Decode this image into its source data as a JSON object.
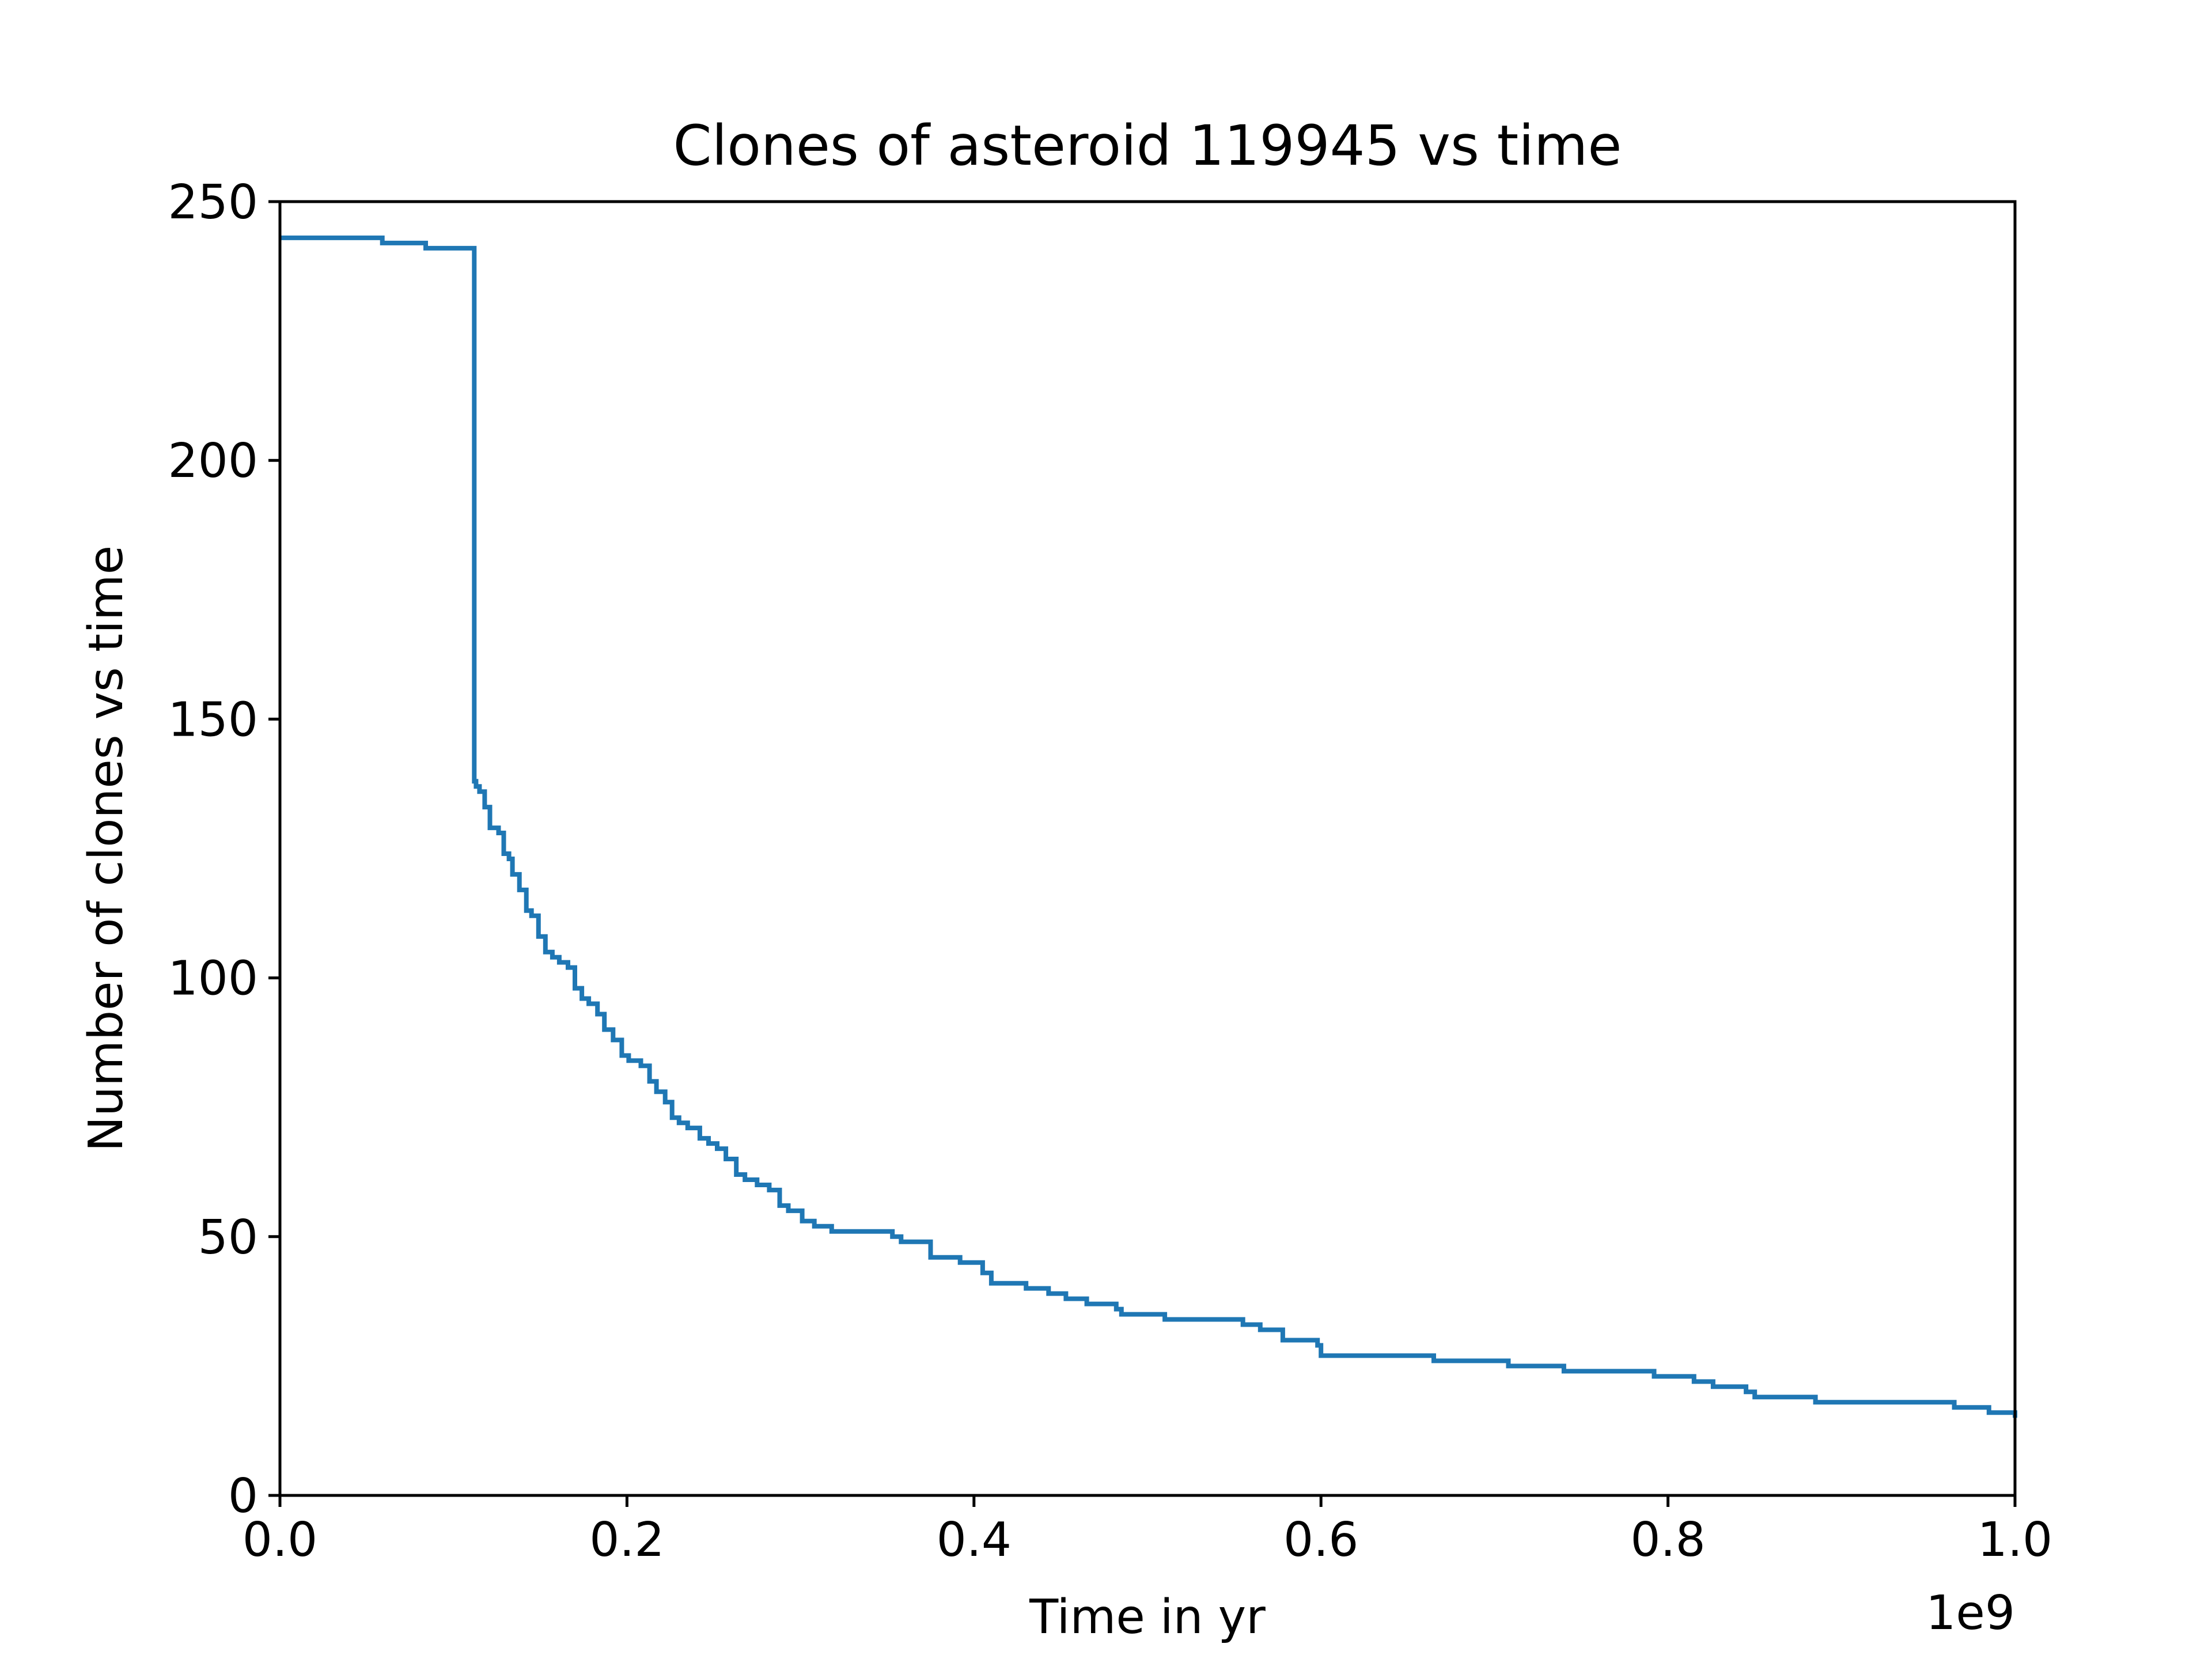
{
  "chart_data": {
    "type": "line",
    "title": "Clones of asteroid 119945 vs time",
    "xlabel": "Time in yr",
    "ylabel": "Number of clones vs time",
    "x_offset_label": "1e9",
    "xlim": [
      0.0,
      1.0
    ],
    "ylim": [
      0,
      250
    ],
    "x_ticks": [
      0.0,
      0.2,
      0.4,
      0.6,
      0.8,
      1.0
    ],
    "x_tick_labels": [
      "0.0",
      "0.2",
      "0.4",
      "0.6",
      "0.8",
      "1.0"
    ],
    "y_ticks": [
      0,
      50,
      100,
      150,
      200,
      250
    ],
    "y_tick_labels": [
      "0",
      "50",
      "100",
      "150",
      "200",
      "250"
    ],
    "grid": false,
    "legend": "none",
    "line_color": "#1f77b4",
    "step": "post",
    "series": [
      {
        "x": [
          0.0,
          0.059,
          0.084,
          0.112,
          0.113,
          0.115,
          0.118,
          0.121,
          0.126,
          0.129,
          0.132,
          0.134,
          0.138,
          0.142,
          0.145,
          0.149,
          0.153,
          0.157,
          0.161,
          0.166,
          0.17,
          0.174,
          0.178,
          0.183,
          0.187,
          0.192,
          0.197,
          0.201,
          0.208,
          0.213,
          0.217,
          0.222,
          0.226,
          0.23,
          0.235,
          0.242,
          0.247,
          0.252,
          0.257,
          0.263,
          0.268,
          0.275,
          0.282,
          0.288,
          0.293,
          0.301,
          0.308,
          0.318,
          0.328,
          0.353,
          0.358,
          0.375,
          0.378,
          0.392,
          0.405,
          0.41,
          0.43,
          0.443,
          0.453,
          0.465,
          0.475,
          0.482,
          0.485,
          0.51,
          0.555,
          0.565,
          0.578,
          0.598,
          0.6,
          0.665,
          0.705,
          0.708,
          0.74,
          0.792,
          0.815,
          0.826,
          0.845,
          0.85,
          0.885,
          0.965,
          0.985,
          1.0
        ],
        "values": [
          243,
          242,
          241,
          138,
          137,
          136,
          133,
          129,
          128,
          124,
          123,
          120,
          117,
          113,
          112,
          108,
          105,
          104,
          103,
          102,
          98,
          96,
          95,
          93,
          90,
          88,
          85,
          84,
          83,
          80,
          78,
          76,
          73,
          72,
          71,
          69,
          68,
          67,
          65,
          62,
          61,
          60,
          59,
          56,
          55,
          53,
          52,
          51,
          51,
          50,
          49,
          46,
          46,
          45,
          43,
          41,
          40,
          39,
          38,
          37,
          37,
          36,
          35,
          34,
          33,
          32,
          30,
          29,
          27,
          26,
          26,
          25,
          24,
          23,
          22,
          21,
          20,
          19,
          18,
          17,
          16,
          15
        ]
      }
    ]
  }
}
